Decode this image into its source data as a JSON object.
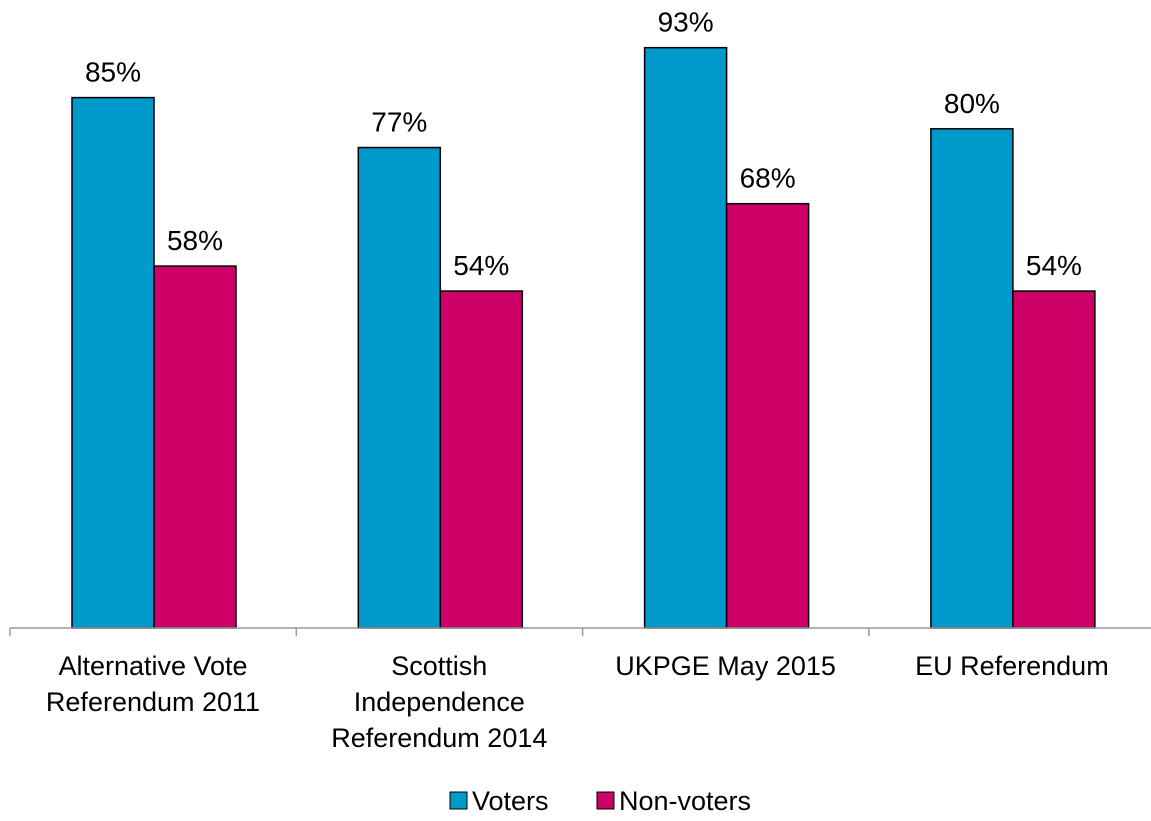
{
  "chart_data": {
    "type": "bar",
    "categories": [
      [
        "Alternative Vote",
        "Referendum 2011"
      ],
      [
        "Scottish",
        "Independence",
        "Referendum 2014"
      ],
      [
        "UKPGE May 2015"
      ],
      [
        "EU Referendum"
      ]
    ],
    "series": [
      {
        "name": "Voters",
        "values": [
          85,
          77,
          93,
          80
        ],
        "labels": [
          "85%",
          "77%",
          "93%",
          "80%"
        ],
        "color": "#0099cc"
      },
      {
        "name": "Non-voters",
        "values": [
          58,
          54,
          68,
          54
        ],
        "labels": [
          "58%",
          "54%",
          "68%",
          "54%"
        ],
        "color": "#cc0066"
      }
    ],
    "ylim": [
      0,
      100
    ],
    "grid": false,
    "legend_position": "bottom",
    "title": "",
    "xlabel": "",
    "ylabel": ""
  }
}
